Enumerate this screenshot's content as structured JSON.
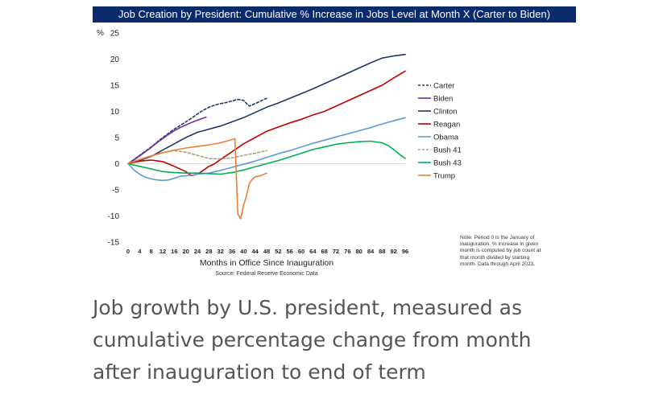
{
  "chart_data": {
    "type": "line",
    "title": "Job Creation by President:  Cumulative % Increase in Jobs Level at Month X (Carter to Biden)",
    "xlabel": "Months in Office Since Inauguration",
    "ylabel": "%",
    "source": "Source:  Federal Reserve Economic Data",
    "xlim": [
      0,
      96
    ],
    "ylim": [
      -15,
      25
    ],
    "xticks": [
      0,
      4,
      8,
      12,
      16,
      20,
      24,
      28,
      32,
      36,
      40,
      44,
      48,
      52,
      56,
      60,
      64,
      68,
      72,
      76,
      80,
      84,
      88,
      92,
      96
    ],
    "yticks": [
      -15,
      -10,
      -5,
      0,
      5,
      10,
      15,
      20,
      25
    ],
    "legend_position": "right",
    "series": [
      {
        "name": "Carter",
        "color": "#1f3864",
        "dash": true,
        "x": [
          0,
          2,
          4,
          6,
          8,
          10,
          12,
          14,
          16,
          18,
          20,
          22,
          24,
          26,
          28,
          30,
          32,
          34,
          36,
          38,
          40,
          42,
          44,
          46,
          48
        ],
        "y": [
          0,
          0.8,
          1.6,
          2.4,
          3.2,
          4.1,
          5,
          5.8,
          6.6,
          7.3,
          8,
          8.7,
          9.5,
          10.2,
          10.8,
          11.2,
          11.5,
          11.7,
          12,
          12.3,
          12.1,
          11,
          11.5,
          12,
          12.5
        ]
      },
      {
        "name": "Biden",
        "color": "#7030a0",
        "dash": false,
        "x": [
          0,
          2,
          4,
          6,
          8,
          10,
          12,
          14,
          16,
          18,
          20,
          22,
          24,
          26,
          27
        ],
        "y": [
          0,
          0.7,
          1.5,
          2.3,
          3.1,
          4,
          4.8,
          5.6,
          6.3,
          6.9,
          7.4,
          7.9,
          8.3,
          8.7,
          8.9
        ]
      },
      {
        "name": "Clinton",
        "color": "#1f3864",
        "dash": false,
        "x": [
          0,
          4,
          8,
          12,
          16,
          20,
          24,
          28,
          32,
          36,
          40,
          44,
          48,
          52,
          56,
          60,
          64,
          68,
          72,
          76,
          80,
          84,
          88,
          92,
          96
        ],
        "y": [
          0,
          0.6,
          1.4,
          2.6,
          3.8,
          5,
          6,
          6.6,
          7.2,
          8,
          8.8,
          9.8,
          10.8,
          11.6,
          12.5,
          13.4,
          14.3,
          15.3,
          16.3,
          17.3,
          18.3,
          19.3,
          20.2,
          20.6,
          20.9
        ]
      },
      {
        "name": "Reagan",
        "color": "#c00000",
        "dash": false,
        "x": [
          0,
          4,
          8,
          12,
          16,
          20,
          22,
          24,
          26,
          28,
          30,
          32,
          36,
          40,
          44,
          48,
          52,
          56,
          60,
          64,
          68,
          72,
          76,
          80,
          84,
          88,
          92,
          96
        ],
        "y": [
          0,
          0.5,
          0.7,
          0.4,
          -0.5,
          -1.5,
          -2.3,
          -2,
          -1.3,
          -0.5,
          0,
          0.8,
          2.3,
          3.8,
          5,
          6.2,
          7,
          7.8,
          8.5,
          9.3,
          10,
          11,
          12,
          13,
          14,
          15,
          16.4,
          17.7
        ]
      },
      {
        "name": "Obama",
        "color": "#5b9bd5",
        "dash": false,
        "x": [
          0,
          2,
          4,
          6,
          8,
          10,
          12,
          14,
          16,
          18,
          20,
          22,
          24,
          28,
          32,
          36,
          40,
          44,
          48,
          52,
          56,
          60,
          64,
          68,
          72,
          76,
          80,
          84,
          88,
          92,
          96
        ],
        "y": [
          0,
          -1.2,
          -2,
          -2.6,
          -2.9,
          -3.1,
          -3.2,
          -3.1,
          -2.8,
          -2.4,
          -2.3,
          -2.2,
          -2,
          -1.8,
          -1.3,
          -0.7,
          -0.1,
          0.5,
          1.2,
          1.9,
          2.5,
          3.2,
          3.9,
          4.5,
          5.1,
          5.7,
          6.3,
          6.9,
          7.6,
          8.2,
          8.8
        ]
      },
      {
        "name": "Bush 41",
        "color": "#a9a57c",
        "dash": true,
        "x": [
          0,
          4,
          8,
          12,
          16,
          20,
          24,
          28,
          32,
          36,
          40,
          44,
          48
        ],
        "y": [
          0,
          0.8,
          1.5,
          2.1,
          2.5,
          2.2,
          1.6,
          1,
          0.9,
          1.1,
          1.6,
          2,
          2.5
        ]
      },
      {
        "name": "Bush 43",
        "color": "#00b050",
        "dash": false,
        "x": [
          0,
          4,
          8,
          12,
          16,
          20,
          24,
          28,
          32,
          36,
          40,
          44,
          48,
          52,
          56,
          60,
          64,
          68,
          72,
          76,
          80,
          84,
          88,
          90,
          92,
          94,
          96
        ],
        "y": [
          0,
          -0.5,
          -1,
          -1.5,
          -1.7,
          -1.8,
          -1.8,
          -1.9,
          -2,
          -1.7,
          -1.2,
          -0.6,
          0,
          0.6,
          1.3,
          2,
          2.7,
          3.2,
          3.7,
          4,
          4.2,
          4.3,
          4,
          3.5,
          2.7,
          1.8,
          1
        ]
      },
      {
        "name": "Trump",
        "color": "#ed7d31",
        "dash": false,
        "x": [
          0,
          4,
          8,
          12,
          16,
          20,
          24,
          28,
          32,
          36,
          37,
          38,
          39,
          40,
          41,
          42,
          43,
          44,
          46,
          48
        ],
        "y": [
          0,
          0.8,
          1.5,
          2.1,
          2.6,
          3,
          3.3,
          3.6,
          4,
          4.6,
          4.8,
          -9.6,
          -10.5,
          -8,
          -6.2,
          -3.8,
          -3,
          -2.5,
          -2.3,
          -1.8
        ]
      }
    ]
  },
  "note_lines": [
    "Note:  Period 0 is the January of",
    "inauguration.  % increase in given",
    "month is computed by job count at",
    "that month divided by starting",
    "month.  Data through April 2023."
  ],
  "caption_lines": [
    "Job growth by U.S. president, measured as",
    "cumulative percentage change from month",
    "after inauguration to end of term"
  ]
}
